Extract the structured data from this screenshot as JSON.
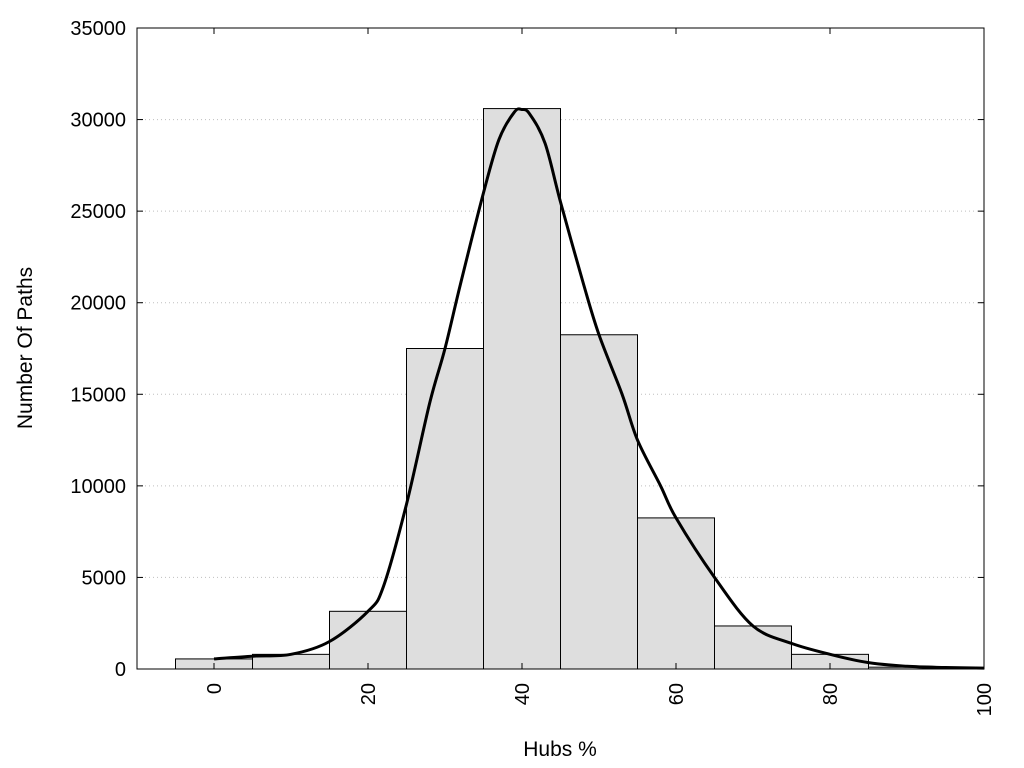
{
  "chart_data": {
    "type": "bar",
    "xlabel": "Hubs %",
    "ylabel": "Number Of Paths",
    "xlim": [
      -10,
      100
    ],
    "ylim": [
      0,
      35000
    ],
    "x_ticks": [
      "0",
      "20",
      "40",
      "60",
      "80",
      "100"
    ],
    "y_ticks": [
      "0",
      "5000",
      "10000",
      "15000",
      "20000",
      "25000",
      "30000",
      "35000"
    ],
    "grid": "horizontal dotted",
    "bar_color": "#dedede",
    "bin_width": 10,
    "bars": [
      {
        "x": 0,
        "value": 550
      },
      {
        "x": 10,
        "value": 800
      },
      {
        "x": 20,
        "value": 3150
      },
      {
        "x": 30,
        "value": 17500
      },
      {
        "x": 40,
        "value": 30600
      },
      {
        "x": 50,
        "value": 18250
      },
      {
        "x": 60,
        "value": 8250
      },
      {
        "x": 70,
        "value": 2350
      },
      {
        "x": 80,
        "value": 800
      },
      {
        "x": 90,
        "value": 100
      }
    ],
    "fit_curve": {
      "x": [
        0,
        5,
        10,
        15,
        20,
        22,
        25,
        28,
        30,
        32,
        35,
        37,
        39,
        40,
        41,
        43,
        45,
        48,
        50,
        53,
        55,
        58,
        60,
        65,
        70,
        75,
        80,
        85,
        90,
        95,
        100
      ],
      "y": [
        550,
        700,
        800,
        1500,
        3150,
        4500,
        9000,
        14500,
        17500,
        21000,
        26000,
        28900,
        30400,
        30550,
        30300,
        28700,
        25500,
        21000,
        18250,
        15000,
        12500,
        10000,
        8250,
        5000,
        2350,
        1400,
        800,
        350,
        150,
        80,
        50
      ]
    }
  }
}
